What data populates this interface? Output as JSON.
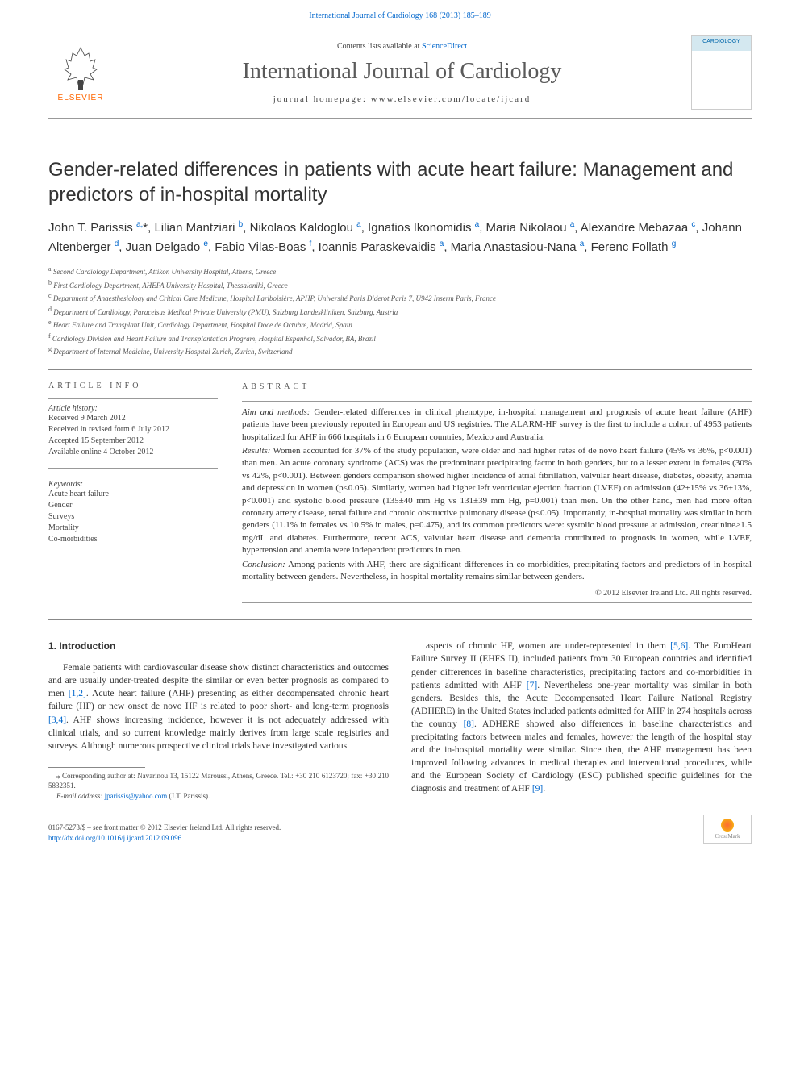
{
  "header": {
    "top_link_prefix": "International Journal of Cardiology 168 (2013) 185–189",
    "contents_text": "Contents lists available at ",
    "contents_link": "ScienceDirect",
    "journal_name": "International Journal of Cardiology",
    "homepage_label": "journal homepage: www.elsevier.com/locate/ijcard",
    "publisher": "ELSEVIER",
    "cover_label": "CARDIOLOGY"
  },
  "title": "Gender-related differences in patients with acute heart failure: Management and predictors of in-hospital mortality",
  "authors_html": "John T. Parissis <sup>a,</sup>*, Lilian Mantziari <sup>b</sup>, Nikolaos Kaldoglou <sup>a</sup>, Ignatios Ikonomidis <sup>a</sup>, Maria Nikolaou <sup>a</sup>, Alexandre Mebazaa <sup>c</sup>, Johann Altenberger <sup>d</sup>, Juan Delgado <sup>e</sup>, Fabio Vilas-Boas <sup>f</sup>, Ioannis Paraskevaidis <sup>a</sup>, Maria Anastasiou-Nana <sup>a</sup>, Ferenc Follath <sup>g</sup>",
  "affiliations": [
    {
      "sup": "a",
      "text": "Second Cardiology Department, Attikon University Hospital, Athens, Greece"
    },
    {
      "sup": "b",
      "text": "First Cardiology Department, AHEPA University Hospital, Thessaloniki, Greece"
    },
    {
      "sup": "c",
      "text": "Department of Anaesthesiology and Critical Care Medicine, Hospital Lariboisière, APHP, Université Paris Diderot Paris 7, U942 Inserm Paris, France"
    },
    {
      "sup": "d",
      "text": "Department of Cardiology, Paracelsus Medical Private University (PMU), Salzburg Landeskliniken, Salzburg, Austria"
    },
    {
      "sup": "e",
      "text": "Heart Failure and Transplant Unit, Cardiology Department, Hospital Doce de Octubre, Madrid, Spain"
    },
    {
      "sup": "f",
      "text": "Cardiology Division and Heart Failure and Transplantation Program, Hospital Espanhol, Salvador, BA, Brazil"
    },
    {
      "sup": "g",
      "text": "Department of Internal Medicine, University Hospital Zurich, Zurich, Switzerland"
    }
  ],
  "info": {
    "section_head": "ARTICLE INFO",
    "history_label": "Article history:",
    "history": [
      "Received 9 March 2012",
      "Received in revised form 6 July 2012",
      "Accepted 15 September 2012",
      "Available online 4 October 2012"
    ],
    "keywords_label": "Keywords:",
    "keywords": [
      "Acute heart failure",
      "Gender",
      "Surveys",
      "Mortality",
      "Co-morbidities"
    ]
  },
  "abstract": {
    "section_head": "ABSTRACT",
    "aim_label": "Aim and methods:",
    "aim": "Gender-related differences in clinical phenotype, in-hospital management and prognosis of acute heart failure (AHF) patients have been previously reported in European and US registries. The ALARM-HF survey is the first to include a cohort of 4953 patients hospitalized for AHF in 666 hospitals in 6 European countries, Mexico and Australia.",
    "results_label": "Results:",
    "results": "Women accounted for 37% of the study population, were older and had higher rates of de novo heart failure (45% vs 36%, p<0.001) than men. An acute coronary syndrome (ACS) was the predominant precipitating factor in both genders, but to a lesser extent in females (30% vs 42%, p<0.001). Between genders comparison showed higher incidence of atrial fibrillation, valvular heart disease, diabetes, obesity, anemia and depression in women (p<0.05). Similarly, women had higher left ventricular ejection fraction (LVEF) on admission (42±15% vs 36±13%, p<0.001) and systolic blood pressure (135±40 mm Hg vs 131±39 mm Hg, p=0.001) than men. On the other hand, men had more often coronary artery disease, renal failure and chronic obstructive pulmonary disease (p<0.05). Importantly, in-hospital mortality was similar in both genders (11.1% in females vs 10.5% in males, p=0.475), and its common predictors were: systolic blood pressure at admission, creatinine>1.5 mg/dL and diabetes. Furthermore, recent ACS, valvular heart disease and dementia contributed to prognosis in women, while LVEF, hypertension and anemia were independent predictors in men.",
    "conclusion_label": "Conclusion:",
    "conclusion": "Among patients with AHF, there are significant differences in co-morbidities, precipitating factors and predictors of in-hospital mortality between genders. Nevertheless, in-hospital mortality remains similar between genders.",
    "copyright": "© 2012 Elsevier Ireland Ltd. All rights reserved."
  },
  "intro": {
    "heading": "1. Introduction",
    "col1": "Female patients with cardiovascular disease show distinct characteristics and outcomes and are usually under-treated despite the similar or even better prognosis as compared to men [1,2]. Acute heart failure (AHF) presenting as either decompensated chronic heart failure (HF) or new onset de novo HF is related to poor short- and long-term prognosis [3,4]. AHF shows increasing incidence, however it is not adequately addressed with clinical trials, and so current knowledge mainly derives from large scale registries and surveys. Although numerous prospective clinical trials have investigated various",
    "col2": "aspects of chronic HF, women are under-represented in them [5,6]. The EuroHeart Failure Survey II (EHFS II), included patients from 30 European countries and identified gender differences in baseline characteristics, precipitating factors and co-morbidities in patients admitted with AHF [7]. Nevertheless one-year mortality was similar in both genders. Besides this, the Acute Decompensated Heart Failure National Registry (ADHERE) in the United States included patients admitted for AHF in 274 hospitals across the country [8]. ADHERE showed also differences in baseline characteristics and precipitating factors between males and females, however the length of the hospital stay and the in-hospital mortality were similar. Since then, the AHF management has been improved following advances in medical therapies and interventional procedures, while and the European Society of Cardiology (ESC) published specific guidelines for the diagnosis and treatment of AHF [9]."
  },
  "footnotes": {
    "corresponding": "⁎ Corresponding author at: Navarinou 13, 15122 Maroussi, Athens, Greece. Tel.: +30 210 6123720; fax: +30 210 5832351.",
    "email_label": "E-mail address:",
    "email": "jparissis@yahoo.com",
    "email_suffix": "(J.T. Parissis)."
  },
  "footer": {
    "issn_line": "0167-5273/$ – see front matter © 2012 Elsevier Ireland Ltd. All rights reserved.",
    "doi": "http://dx.doi.org/10.1016/j.ijcard.2012.09.096",
    "crossmark": "CrossMark"
  },
  "colors": {
    "link": "#0066cc",
    "text": "#333333",
    "muted": "#555555",
    "rule": "#888888",
    "elsevier_orange": "#ff6600"
  }
}
